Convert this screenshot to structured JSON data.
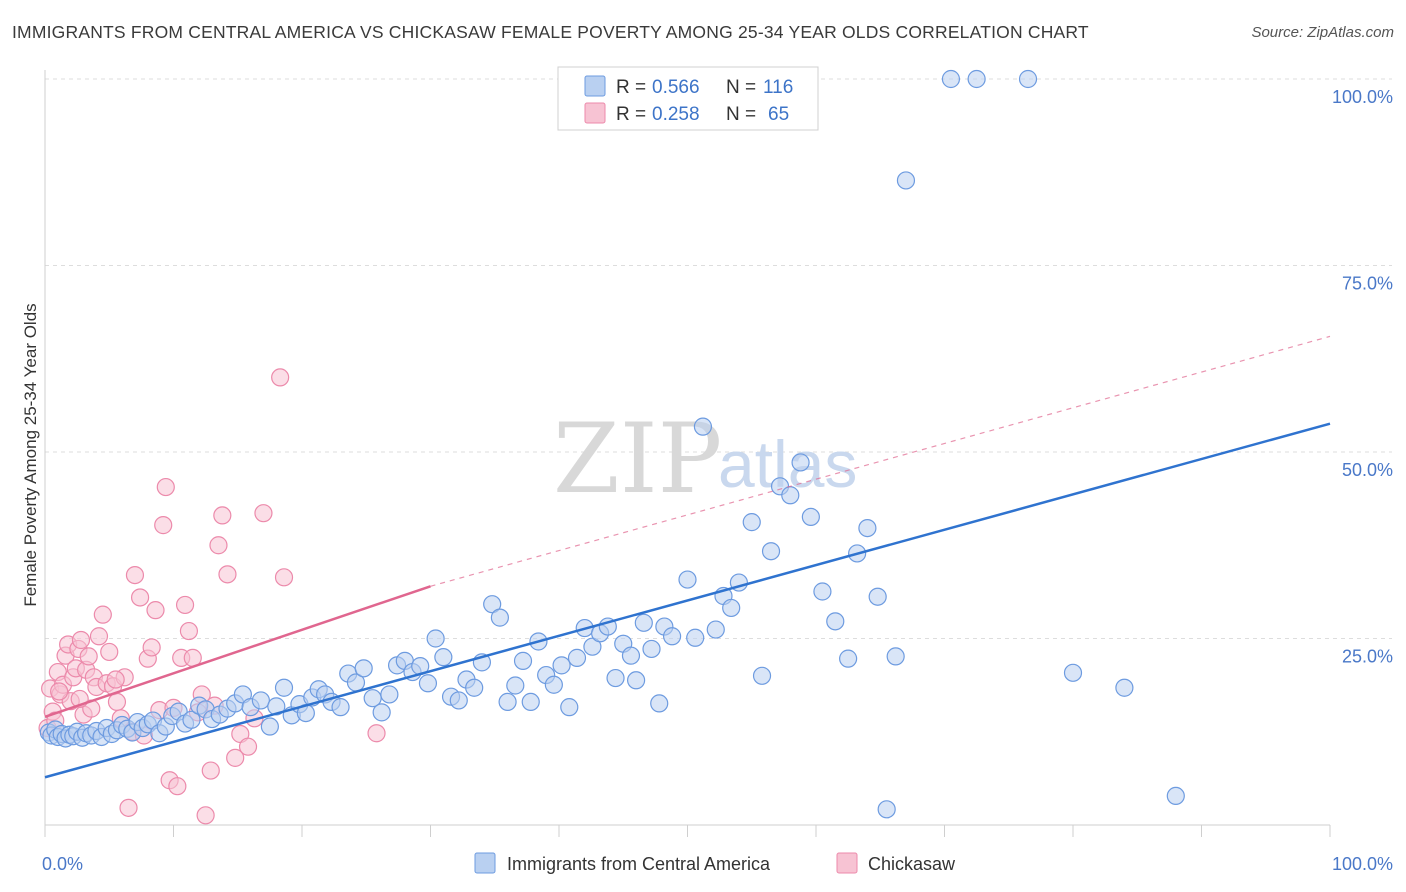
{
  "title": "IMMIGRANTS FROM CENTRAL AMERICA VS CHICKASAW FEMALE POVERTY AMONG 25-34 YEAR OLDS CORRELATION CHART",
  "source": "Source: ZipAtlas.com",
  "watermark": {
    "zip": "ZIP",
    "atlas": "atlas"
  },
  "colors": {
    "blue_fill": "#b9d0f1",
    "blue_stroke": "#6d9be0",
    "blue_line": "#2f73cf",
    "pink_fill": "#f7c3d3",
    "pink_stroke": "#ec8aab",
    "pink_line": "#e0668f",
    "grid": "#dddddd",
    "tick_text": "#4a78c8"
  },
  "legend": {
    "rows": [
      {
        "r_label": "R =",
        "r_value": "0.566",
        "n_label": "N =",
        "n_value": "116"
      },
      {
        "r_label": "R =",
        "r_value": "0.258",
        "n_label": "N =",
        "n_value": "65"
      }
    ]
  },
  "chart_data": {
    "type": "scatter",
    "title": "IMMIGRANTS FROM CENTRAL AMERICA VS CHICKASAW FEMALE POVERTY AMONG 25-34 YEAR OLDS CORRELATION CHART",
    "xlabel": "",
    "ylabel": "Female Poverty Among 25-34 Year Olds",
    "xlim": [
      0,
      100
    ],
    "ylim": [
      0,
      105
    ],
    "x_ticks": [
      {
        "value": 0,
        "label": "0.0%"
      },
      {
        "value": 100,
        "label": "100.0%"
      }
    ],
    "y_ticks": [
      {
        "value": 25,
        "label": "25.0%"
      },
      {
        "value": 50,
        "label": "50.0%"
      },
      {
        "value": 75,
        "label": "75.0%"
      },
      {
        "value": 100,
        "label": "100.0%"
      }
    ],
    "grid": true,
    "legend_placement": "top-center",
    "series": [
      {
        "name": "Immigrants from Central America",
        "color": "#6d9be0",
        "trend": {
          "x": [
            0,
            100
          ],
          "y": [
            6.4,
            53.8
          ],
          "style": "solid"
        },
        "points": [
          [
            0.3,
            12.4
          ],
          [
            0.5,
            12.0
          ],
          [
            0.8,
            12.8
          ],
          [
            1.0,
            11.8
          ],
          [
            1.3,
            12.2
          ],
          [
            1.6,
            11.6
          ],
          [
            1.9,
            12.1
          ],
          [
            2.2,
            11.9
          ],
          [
            2.5,
            12.5
          ],
          [
            2.9,
            11.7
          ],
          [
            3.2,
            12.3
          ],
          [
            3.6,
            12.0
          ],
          [
            4.0,
            12.6
          ],
          [
            4.4,
            11.8
          ],
          [
            4.8,
            13.0
          ],
          [
            5.2,
            12.2
          ],
          [
            5.6,
            12.7
          ],
          [
            6.0,
            13.4
          ],
          [
            6.4,
            12.9
          ],
          [
            6.8,
            12.4
          ],
          [
            7.2,
            13.8
          ],
          [
            7.6,
            13.0
          ],
          [
            8.0,
            13.5
          ],
          [
            8.4,
            14.0
          ],
          [
            8.9,
            12.3
          ],
          [
            9.4,
            13.2
          ],
          [
            9.9,
            14.6
          ],
          [
            10.4,
            15.2
          ],
          [
            10.9,
            13.6
          ],
          [
            11.4,
            14.1
          ],
          [
            12.0,
            16.0
          ],
          [
            12.5,
            15.5
          ],
          [
            13.0,
            14.2
          ],
          [
            13.6,
            14.8
          ],
          [
            14.2,
            15.6
          ],
          [
            14.8,
            16.3
          ],
          [
            15.4,
            17.5
          ],
          [
            16.0,
            15.8
          ],
          [
            16.8,
            16.7
          ],
          [
            17.5,
            13.2
          ],
          [
            18.0,
            15.9
          ],
          [
            18.6,
            18.4
          ],
          [
            19.2,
            14.7
          ],
          [
            19.8,
            16.2
          ],
          [
            20.3,
            15.0
          ],
          [
            20.8,
            17.1
          ],
          [
            21.3,
            18.2
          ],
          [
            21.8,
            17.5
          ],
          [
            22.3,
            16.5
          ],
          [
            23.0,
            15.8
          ],
          [
            23.6,
            20.3
          ],
          [
            24.2,
            19.1
          ],
          [
            24.8,
            21.0
          ],
          [
            25.5,
            17.0
          ],
          [
            26.2,
            15.1
          ],
          [
            26.8,
            17.5
          ],
          [
            27.4,
            21.4
          ],
          [
            28.0,
            22.0
          ],
          [
            28.6,
            20.5
          ],
          [
            29.2,
            21.3
          ],
          [
            29.8,
            19.0
          ],
          [
            30.4,
            25.0
          ],
          [
            31.0,
            22.5
          ],
          [
            31.6,
            17.2
          ],
          [
            32.2,
            16.7
          ],
          [
            32.8,
            19.5
          ],
          [
            33.4,
            18.4
          ],
          [
            34.0,
            21.8
          ],
          [
            34.8,
            29.6
          ],
          [
            35.4,
            27.8
          ],
          [
            36.0,
            16.5
          ],
          [
            36.6,
            18.7
          ],
          [
            37.2,
            22.0
          ],
          [
            37.8,
            16.5
          ],
          [
            38.4,
            24.6
          ],
          [
            39.0,
            20.1
          ],
          [
            39.6,
            18.8
          ],
          [
            40.2,
            21.4
          ],
          [
            40.8,
            15.8
          ],
          [
            41.4,
            22.4
          ],
          [
            42.0,
            26.4
          ],
          [
            42.6,
            23.9
          ],
          [
            43.2,
            25.7
          ],
          [
            43.8,
            26.6
          ],
          [
            44.4,
            19.7
          ],
          [
            45.0,
            24.3
          ],
          [
            45.6,
            22.7
          ],
          [
            46.0,
            19.4
          ],
          [
            46.6,
            27.1
          ],
          [
            47.2,
            23.6
          ],
          [
            47.8,
            16.3
          ],
          [
            48.2,
            26.6
          ],
          [
            48.8,
            25.3
          ],
          [
            50.0,
            32.9
          ],
          [
            50.6,
            25.1
          ],
          [
            51.2,
            53.4
          ],
          [
            52.2,
            26.2
          ],
          [
            52.8,
            30.7
          ],
          [
            53.4,
            29.1
          ],
          [
            54.0,
            32.5
          ],
          [
            55.0,
            40.6
          ],
          [
            55.8,
            20.0
          ],
          [
            56.5,
            36.7
          ],
          [
            57.2,
            45.4
          ],
          [
            58.0,
            44.2
          ],
          [
            58.8,
            48.6
          ],
          [
            59.6,
            41.3
          ],
          [
            60.5,
            31.3
          ],
          [
            61.5,
            27.3
          ],
          [
            62.5,
            22.3
          ],
          [
            63.2,
            36.4
          ],
          [
            64.0,
            39.8
          ],
          [
            64.8,
            30.6
          ],
          [
            65.5,
            2.1
          ],
          [
            66.2,
            22.6
          ],
          [
            67.0,
            86.4
          ],
          [
            70.5,
            100.0
          ],
          [
            72.5,
            100.0
          ],
          [
            76.5,
            100.0
          ],
          [
            80.0,
            20.4
          ],
          [
            84.0,
            18.4
          ],
          [
            88.0,
            3.9
          ]
        ]
      },
      {
        "name": "Chickasaw",
        "color": "#ec8aab",
        "trend": {
          "x": [
            0,
            30
          ],
          "y": [
            14.5,
            32.0
          ],
          "style": "solid",
          "dashed_extension_to": [
            100,
            65.5
          ]
        },
        "points": [
          [
            0.2,
            13.0
          ],
          [
            0.4,
            18.3
          ],
          [
            0.6,
            15.2
          ],
          [
            0.8,
            14.0
          ],
          [
            1.0,
            20.5
          ],
          [
            1.2,
            17.5
          ],
          [
            1.4,
            18.8
          ],
          [
            1.6,
            22.7
          ],
          [
            1.8,
            24.2
          ],
          [
            2.0,
            16.6
          ],
          [
            2.2,
            19.8
          ],
          [
            2.4,
            21.0
          ],
          [
            2.6,
            23.6
          ],
          [
            2.8,
            24.8
          ],
          [
            3.0,
            14.8
          ],
          [
            3.2,
            20.8
          ],
          [
            3.4,
            22.6
          ],
          [
            3.6,
            15.6
          ],
          [
            3.8,
            19.8
          ],
          [
            4.0,
            18.5
          ],
          [
            4.2,
            25.3
          ],
          [
            4.5,
            28.2
          ],
          [
            4.8,
            19.0
          ],
          [
            5.0,
            23.2
          ],
          [
            5.3,
            18.6
          ],
          [
            5.6,
            16.5
          ],
          [
            5.9,
            14.3
          ],
          [
            6.2,
            19.8
          ],
          [
            6.5,
            2.3
          ],
          [
            6.8,
            12.5
          ],
          [
            7.0,
            33.5
          ],
          [
            7.4,
            30.5
          ],
          [
            7.7,
            12.0
          ],
          [
            8.0,
            22.3
          ],
          [
            8.3,
            23.8
          ],
          [
            8.6,
            28.8
          ],
          [
            8.9,
            15.4
          ],
          [
            9.2,
            40.2
          ],
          [
            9.4,
            45.3
          ],
          [
            9.7,
            6.0
          ],
          [
            10.0,
            15.7
          ],
          [
            10.3,
            5.2
          ],
          [
            10.6,
            22.4
          ],
          [
            10.9,
            29.5
          ],
          [
            11.2,
            26.0
          ],
          [
            11.5,
            22.4
          ],
          [
            11.9,
            15.1
          ],
          [
            12.2,
            17.5
          ],
          [
            12.5,
            1.3
          ],
          [
            12.9,
            7.3
          ],
          [
            13.2,
            16.0
          ],
          [
            13.5,
            37.5
          ],
          [
            13.8,
            41.5
          ],
          [
            14.2,
            33.6
          ],
          [
            14.8,
            9.0
          ],
          [
            15.2,
            12.2
          ],
          [
            15.8,
            10.5
          ],
          [
            16.3,
            14.3
          ],
          [
            17.0,
            41.8
          ],
          [
            18.3,
            60.0
          ],
          [
            18.6,
            33.2
          ],
          [
            25.8,
            12.3
          ],
          [
            1.1,
            17.9
          ],
          [
            2.7,
            16.9
          ],
          [
            5.5,
            19.5
          ]
        ]
      }
    ]
  }
}
